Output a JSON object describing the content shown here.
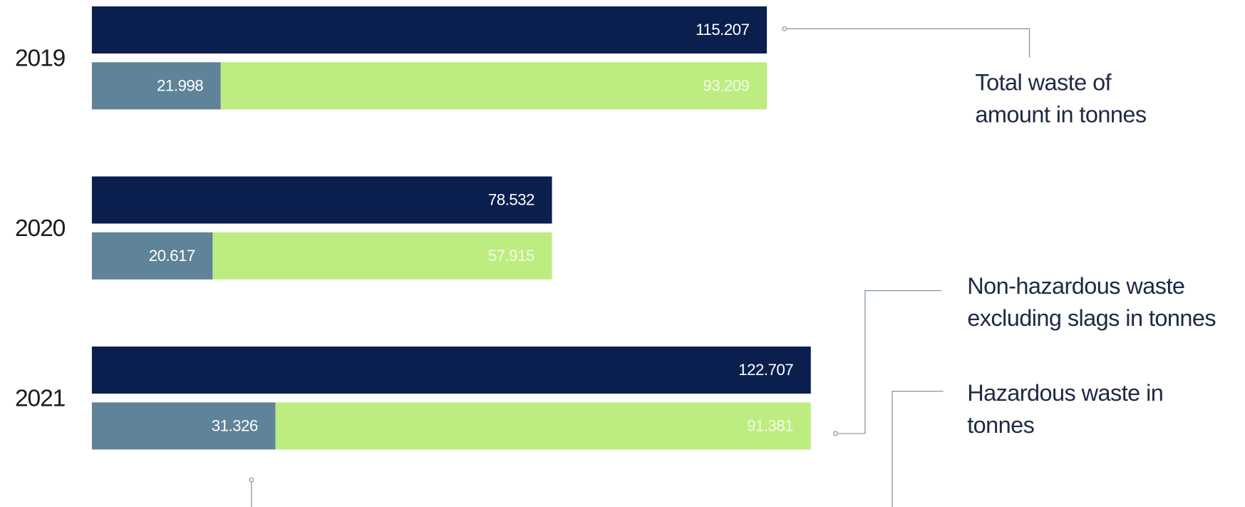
{
  "chart_data": {
    "type": "bar",
    "orientation": "horizontal",
    "categories": [
      "2019",
      "2020",
      "2021"
    ],
    "series": [
      {
        "name": "Total waste of amount in tonnes",
        "color": "#0a1f4e",
        "values": [
          115207,
          78532,
          122707
        ],
        "value_labels": [
          "115.207",
          "78.532",
          "122.707"
        ]
      },
      {
        "name": "Hazardous waste in tonnes",
        "color": "#5f8398",
        "values": [
          21998,
          20617,
          31326
        ],
        "value_labels": [
          "21.998",
          "20.617",
          "31.326"
        ]
      },
      {
        "name": "Non-hazardous waste excluding slags in tonnes",
        "color": "#bdec80",
        "values": [
          93209,
          57915,
          91381
        ],
        "value_labels": [
          "93.209",
          "57.915",
          "91.381"
        ]
      }
    ]
  }
}
